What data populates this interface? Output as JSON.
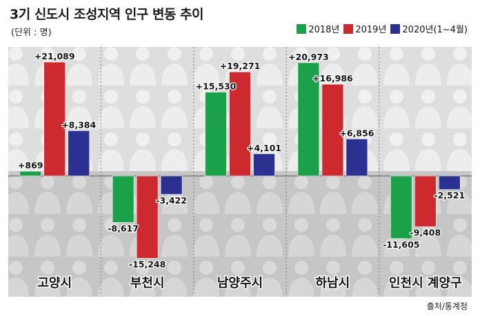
{
  "title": "3기 신도시 조성지역 인구 변동 추이",
  "unit": "(단위 : 명)",
  "source": "출처/통계청",
  "colors": {
    "2018": "#1ca14b",
    "2019": "#cc2a2f",
    "2020": "#2b3190"
  },
  "chart_data": {
    "type": "bar",
    "title": "3기 신도시 조성지역 인구 변동 추이",
    "ylabel": "",
    "xlabel": "",
    "ylim": [
      -16500,
      22000
    ],
    "grid": false,
    "legend_position": "top-right",
    "categories": [
      "고양시",
      "부천시",
      "남양주시",
      "하남시",
      "인천시 계양구"
    ],
    "series": [
      {
        "name": "2018년",
        "color": "#1ca14b",
        "values": [
          869,
          -8617,
          15530,
          20973,
          -11605
        ],
        "labels": [
          "+869",
          "-8,617",
          "+15,530",
          "+20,973",
          "-11,605"
        ]
      },
      {
        "name": "2019년",
        "color": "#cc2a2f",
        "values": [
          21089,
          -15248,
          19271,
          16986,
          -9408
        ],
        "labels": [
          "+21,089",
          "-15,248",
          "+19,271",
          "+16,986",
          "-9,408"
        ]
      },
      {
        "name": "2020년(1~4월)",
        "color": "#2b3190",
        "values": [
          8384,
          -3422,
          4101,
          6856,
          -2521
        ],
        "labels": [
          "+8,384",
          "-3,422",
          "+4,101",
          "+6,856",
          "-2,521"
        ]
      }
    ]
  }
}
